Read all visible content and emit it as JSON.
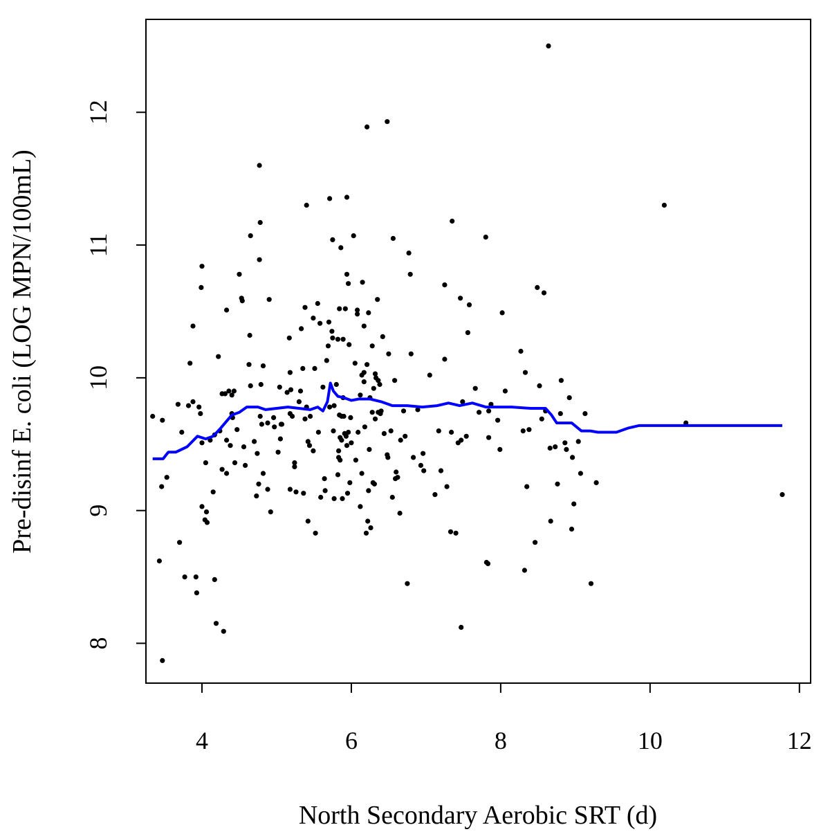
{
  "chart_data": {
    "type": "scatter",
    "title": "",
    "xlabel": "North Secondary Aerobic SRT (d)",
    "ylabel": "Pre-disinf E. coli (LOG MPN/100mL)",
    "xlim": [
      3.25,
      12.15
    ],
    "ylim": [
      7.7,
      12.7
    ],
    "xticks": [
      4,
      6,
      8,
      10,
      12
    ],
    "yticks": [
      8,
      9,
      10,
      11,
      12
    ],
    "xtick_labels": [
      "4",
      "6",
      "8",
      "10",
      "12"
    ],
    "ytick_labels": [
      "8",
      "9",
      "10",
      "11",
      "12"
    ],
    "grid": false,
    "legend": "none",
    "colors": {
      "points": "#000000",
      "smooth": "#0000ff",
      "frame": "#000000"
    },
    "points": [
      [
        3.34,
        9.71
      ],
      [
        3.43,
        8.62
      ],
      [
        3.46,
        9.18
      ],
      [
        3.47,
        9.68
      ],
      [
        3.47,
        7.87
      ],
      [
        3.53,
        9.25
      ],
      [
        3.68,
        9.8
      ],
      [
        3.7,
        8.76
      ],
      [
        3.73,
        9.59
      ],
      [
        3.77,
        8.5
      ],
      [
        3.82,
        9.79
      ],
      [
        3.84,
        10.11
      ],
      [
        3.88,
        10.39
      ],
      [
        3.88,
        9.82
      ],
      [
        3.92,
        8.5
      ],
      [
        3.93,
        8.38
      ],
      [
        3.96,
        9.78
      ],
      [
        3.98,
        9.73
      ],
      [
        3.99,
        10.68
      ],
      [
        4.0,
        10.84
      ],
      [
        4.0,
        9.51
      ],
      [
        4.0,
        9.03
      ],
      [
        4.04,
        8.93
      ],
      [
        4.05,
        9.36
      ],
      [
        4.06,
        8.99
      ],
      [
        4.07,
        8.91
      ],
      [
        4.11,
        9.53
      ],
      [
        4.15,
        9.14
      ],
      [
        4.17,
        9.57
      ],
      [
        4.17,
        8.48
      ],
      [
        4.19,
        8.15
      ],
      [
        4.22,
        10.16
      ],
      [
        4.24,
        9.6
      ],
      [
        4.27,
        9.88
      ],
      [
        4.27,
        9.31
      ],
      [
        4.29,
        8.09
      ],
      [
        4.31,
        9.88
      ],
      [
        4.33,
        10.51
      ],
      [
        4.33,
        9.53
      ],
      [
        4.33,
        9.28
      ],
      [
        4.36,
        9.9
      ],
      [
        4.38,
        9.49
      ],
      [
        4.4,
        9.87
      ],
      [
        4.4,
        9.73
      ],
      [
        4.41,
        9.7
      ],
      [
        4.43,
        9.9
      ],
      [
        4.44,
        9.36
      ],
      [
        4.47,
        9.61
      ],
      [
        4.5,
        10.78
      ],
      [
        4.53,
        10.6
      ],
      [
        4.54,
        10.58
      ],
      [
        4.56,
        9.48
      ],
      [
        4.58,
        9.34
      ],
      [
        4.63,
        10.1
      ],
      [
        4.64,
        10.32
      ],
      [
        4.65,
        11.07
      ],
      [
        4.65,
        9.94
      ],
      [
        4.7,
        9.52
      ],
      [
        4.73,
        9.11
      ],
      [
        4.74,
        9.43
      ],
      [
        4.76,
        9.2
      ],
      [
        4.77,
        10.89
      ],
      [
        4.77,
        11.6
      ],
      [
        4.78,
        11.17
      ],
      [
        4.78,
        9.71
      ],
      [
        4.79,
        9.95
      ],
      [
        4.8,
        9.65
      ],
      [
        4.82,
        10.09
      ],
      [
        4.82,
        9.28
      ],
      [
        4.88,
        9.16
      ],
      [
        4.88,
        9.66
      ],
      [
        4.9,
        10.59
      ],
      [
        4.92,
        8.99
      ],
      [
        4.96,
        9.7
      ],
      [
        4.97,
        9.63
      ],
      [
        5.02,
        9.44
      ],
      [
        5.04,
        9.93
      ],
      [
        5.05,
        9.54
      ],
      [
        5.06,
        9.65
      ],
      [
        5.07,
        9.65
      ],
      [
        5.14,
        9.89
      ],
      [
        5.17,
        10.3
      ],
      [
        5.18,
        10.04
      ],
      [
        5.18,
        9.73
      ],
      [
        5.18,
        9.16
      ],
      [
        5.19,
        9.91
      ],
      [
        5.21,
        9.71
      ],
      [
        5.24,
        9.36
      ],
      [
        5.24,
        9.33
      ],
      [
        5.26,
        9.14
      ],
      [
        5.3,
        9.82
      ],
      [
        5.32,
        9.9
      ],
      [
        5.33,
        10.37
      ],
      [
        5.35,
        10.07
      ],
      [
        5.36,
        9.13
      ],
      [
        5.38,
        10.53
      ],
      [
        5.38,
        9.69
      ],
      [
        5.4,
        11.3
      ],
      [
        5.4,
        9.78
      ],
      [
        5.42,
        8.92
      ],
      [
        5.42,
        9.52
      ],
      [
        5.44,
        9.49
      ],
      [
        5.45,
        9.71
      ],
      [
        5.49,
        9.45
      ],
      [
        5.49,
        10.45
      ],
      [
        5.51,
        10.07
      ],
      [
        5.52,
        8.83
      ],
      [
        5.55,
        10.56
      ],
      [
        5.56,
        9.59
      ],
      [
        5.58,
        10.41
      ],
      [
        5.59,
        9.1
      ],
      [
        5.62,
        9.93
      ],
      [
        5.64,
        9.24
      ],
      [
        5.65,
        9.15
      ],
      [
        5.67,
        10.13
      ],
      [
        5.69,
        10.24
      ],
      [
        5.7,
        10.42
      ],
      [
        5.71,
        11.35
      ],
      [
        5.71,
        9.78
      ],
      [
        5.74,
        10.35
      ],
      [
        5.75,
        11.04
      ],
      [
        5.75,
        10.3
      ],
      [
        5.76,
        9.6
      ],
      [
        5.77,
        9.79
      ],
      [
        5.77,
        9.09
      ],
      [
        5.8,
        9.95
      ],
      [
        5.82,
        9.27
      ],
      [
        5.82,
        10.29
      ],
      [
        5.83,
        9.45
      ],
      [
        5.83,
        9.4
      ],
      [
        5.84,
        9.72
      ],
      [
        5.84,
        10.52
      ],
      [
        5.85,
        9.38
      ],
      [
        5.85,
        9.55
      ],
      [
        5.86,
        10.98
      ],
      [
        5.87,
        9.53
      ],
      [
        5.87,
        9.71
      ],
      [
        5.88,
        9.09
      ],
      [
        5.89,
        10.29
      ],
      [
        5.89,
        9.85
      ],
      [
        5.9,
        9.71
      ],
      [
        5.91,
        9.58
      ],
      [
        5.92,
        10.52
      ],
      [
        5.93,
        9.56
      ],
      [
        5.94,
        9.49
      ],
      [
        5.94,
        10.78
      ],
      [
        5.94,
        11.36
      ],
      [
        5.95,
        9.13
      ],
      [
        5.96,
        9.59
      ],
      [
        5.96,
        10.71
      ],
      [
        5.97,
        10.25
      ],
      [
        5.98,
        9.21
      ],
      [
        5.99,
        9.7
      ],
      [
        6.0,
        9.51
      ],
      [
        6.03,
        11.07
      ],
      [
        6.05,
        10.11
      ],
      [
        6.06,
        9.38
      ],
      [
        6.08,
        10.51
      ],
      [
        6.08,
        10.48
      ],
      [
        6.09,
        9.59
      ],
      [
        6.12,
        9.87
      ],
      [
        6.12,
        9.03
      ],
      [
        6.14,
        10.02
      ],
      [
        6.14,
        9.28
      ],
      [
        6.15,
        10.72
      ],
      [
        6.17,
        9.97
      ],
      [
        6.17,
        10.04
      ],
      [
        6.17,
        10.39
      ],
      [
        6.18,
        9.63
      ],
      [
        6.2,
        8.83
      ],
      [
        6.21,
        10.1
      ],
      [
        6.21,
        11.89
      ],
      [
        6.22,
        8.92
      ],
      [
        6.23,
        10.49
      ],
      [
        6.23,
        9.15
      ],
      [
        6.24,
        9.46
      ],
      [
        6.25,
        9.85
      ],
      [
        6.26,
        8.87
      ],
      [
        6.28,
        10.24
      ],
      [
        6.28,
        9.74
      ],
      [
        6.29,
        9.21
      ],
      [
        6.3,
        9.92
      ],
      [
        6.31,
        9.2
      ],
      [
        6.32,
        10.03
      ],
      [
        6.32,
        9.69
      ],
      [
        6.33,
        10.0
      ],
      [
        6.35,
        10.59
      ],
      [
        6.36,
        9.98
      ],
      [
        6.36,
        9.74
      ],
      [
        6.38,
        9.95
      ],
      [
        6.39,
        9.73
      ],
      [
        6.4,
        9.75
      ],
      [
        6.42,
        10.31
      ],
      [
        6.44,
        9.58
      ],
      [
        6.48,
        11.93
      ],
      [
        6.48,
        9.42
      ],
      [
        6.49,
        9.4
      ],
      [
        6.5,
        10.18
      ],
      [
        6.53,
        9.6
      ],
      [
        6.55,
        9.1
      ],
      [
        6.56,
        11.05
      ],
      [
        6.58,
        9.98
      ],
      [
        6.59,
        9.24
      ],
      [
        6.6,
        9.29
      ],
      [
        6.62,
        9.25
      ],
      [
        6.65,
        8.98
      ],
      [
        6.66,
        9.53
      ],
      [
        6.7,
        9.75
      ],
      [
        6.72,
        9.56
      ],
      [
        6.75,
        8.45
      ],
      [
        6.77,
        10.94
      ],
      [
        6.79,
        10.78
      ],
      [
        6.8,
        10.18
      ],
      [
        6.83,
        9.4
      ],
      [
        6.89,
        9.76
      ],
      [
        6.93,
        9.34
      ],
      [
        6.96,
        9.43
      ],
      [
        6.97,
        9.3
      ],
      [
        7.05,
        10.02
      ],
      [
        7.12,
        9.12
      ],
      [
        7.17,
        9.6
      ],
      [
        7.2,
        9.3
      ],
      [
        7.25,
        10.7
      ],
      [
        7.25,
        10.14
      ],
      [
        7.28,
        9.18
      ],
      [
        7.33,
        8.84
      ],
      [
        7.34,
        9.59
      ],
      [
        7.35,
        11.18
      ],
      [
        7.4,
        8.83
      ],
      [
        7.43,
        9.51
      ],
      [
        7.46,
        10.6
      ],
      [
        7.47,
        9.53
      ],
      [
        7.47,
        8.12
      ],
      [
        7.49,
        9.82
      ],
      [
        7.54,
        9.56
      ],
      [
        7.56,
        10.34
      ],
      [
        7.58,
        10.55
      ],
      [
        7.66,
        9.92
      ],
      [
        7.71,
        9.74
      ],
      [
        7.8,
        11.06
      ],
      [
        7.81,
        8.61
      ],
      [
        7.83,
        8.6
      ],
      [
        7.84,
        9.75
      ],
      [
        7.84,
        9.55
      ],
      [
        7.87,
        9.8
      ],
      [
        7.96,
        9.68
      ],
      [
        7.99,
        9.46
      ],
      [
        8.02,
        10.49
      ],
      [
        8.06,
        9.9
      ],
      [
        8.27,
        10.2
      ],
      [
        8.3,
        9.6
      ],
      [
        8.32,
        8.55
      ],
      [
        8.33,
        10.04
      ],
      [
        8.35,
        9.18
      ],
      [
        8.38,
        9.61
      ],
      [
        8.46,
        8.76
      ],
      [
        8.49,
        10.68
      ],
      [
        8.52,
        9.94
      ],
      [
        8.55,
        9.69
      ],
      [
        8.58,
        10.64
      ],
      [
        8.6,
        9.75
      ],
      [
        8.64,
        12.5
      ],
      [
        8.66,
        9.47
      ],
      [
        8.67,
        8.92
      ],
      [
        8.73,
        9.48
      ],
      [
        8.76,
        9.2
      ],
      [
        8.8,
        9.73
      ],
      [
        8.81,
        9.98
      ],
      [
        8.86,
        9.51
      ],
      [
        8.88,
        9.46
      ],
      [
        8.92,
        9.85
      ],
      [
        8.95,
        8.86
      ],
      [
        8.96,
        9.4
      ],
      [
        8.98,
        9.05
      ],
      [
        9.04,
        9.52
      ],
      [
        9.07,
        9.28
      ],
      [
        9.13,
        9.73
      ],
      [
        9.21,
        8.45
      ],
      [
        9.28,
        9.21
      ],
      [
        10.19,
        11.3
      ],
      [
        10.48,
        9.66
      ],
      [
        11.77,
        9.12
      ]
    ],
    "smooth_line": [
      [
        3.34,
        9.39
      ],
      [
        3.48,
        9.39
      ],
      [
        3.55,
        9.44
      ],
      [
        3.65,
        9.44
      ],
      [
        3.8,
        9.48
      ],
      [
        3.94,
        9.56
      ],
      [
        4.05,
        9.54
      ],
      [
        4.15,
        9.56
      ],
      [
        4.25,
        9.62
      ],
      [
        4.4,
        9.72
      ],
      [
        4.5,
        9.74
      ],
      [
        4.6,
        9.78
      ],
      [
        4.75,
        9.78
      ],
      [
        4.85,
        9.76
      ],
      [
        5.0,
        9.77
      ],
      [
        5.15,
        9.78
      ],
      [
        5.3,
        9.77
      ],
      [
        5.45,
        9.76
      ],
      [
        5.55,
        9.78
      ],
      [
        5.62,
        9.75
      ],
      [
        5.68,
        9.82
      ],
      [
        5.72,
        9.96
      ],
      [
        5.76,
        9.9
      ],
      [
        5.82,
        9.86
      ],
      [
        5.9,
        9.85
      ],
      [
        6.0,
        9.83
      ],
      [
        6.1,
        9.84
      ],
      [
        6.25,
        9.84
      ],
      [
        6.4,
        9.82
      ],
      [
        6.55,
        9.79
      ],
      [
        6.75,
        9.79
      ],
      [
        6.95,
        9.78
      ],
      [
        7.15,
        9.79
      ],
      [
        7.3,
        9.81
      ],
      [
        7.45,
        9.79
      ],
      [
        7.62,
        9.81
      ],
      [
        7.8,
        9.78
      ],
      [
        7.95,
        9.78
      ],
      [
        8.15,
        9.78
      ],
      [
        8.4,
        9.77
      ],
      [
        8.6,
        9.77
      ],
      [
        8.68,
        9.72
      ],
      [
        8.75,
        9.66
      ],
      [
        8.95,
        9.66
      ],
      [
        9.08,
        9.6
      ],
      [
        9.2,
        9.6
      ],
      [
        9.3,
        9.59
      ],
      [
        9.55,
        9.59
      ],
      [
        9.7,
        9.62
      ],
      [
        9.85,
        9.64
      ],
      [
        10.2,
        9.64
      ],
      [
        10.8,
        9.64
      ],
      [
        11.4,
        9.64
      ],
      [
        11.77,
        9.64
      ]
    ]
  }
}
